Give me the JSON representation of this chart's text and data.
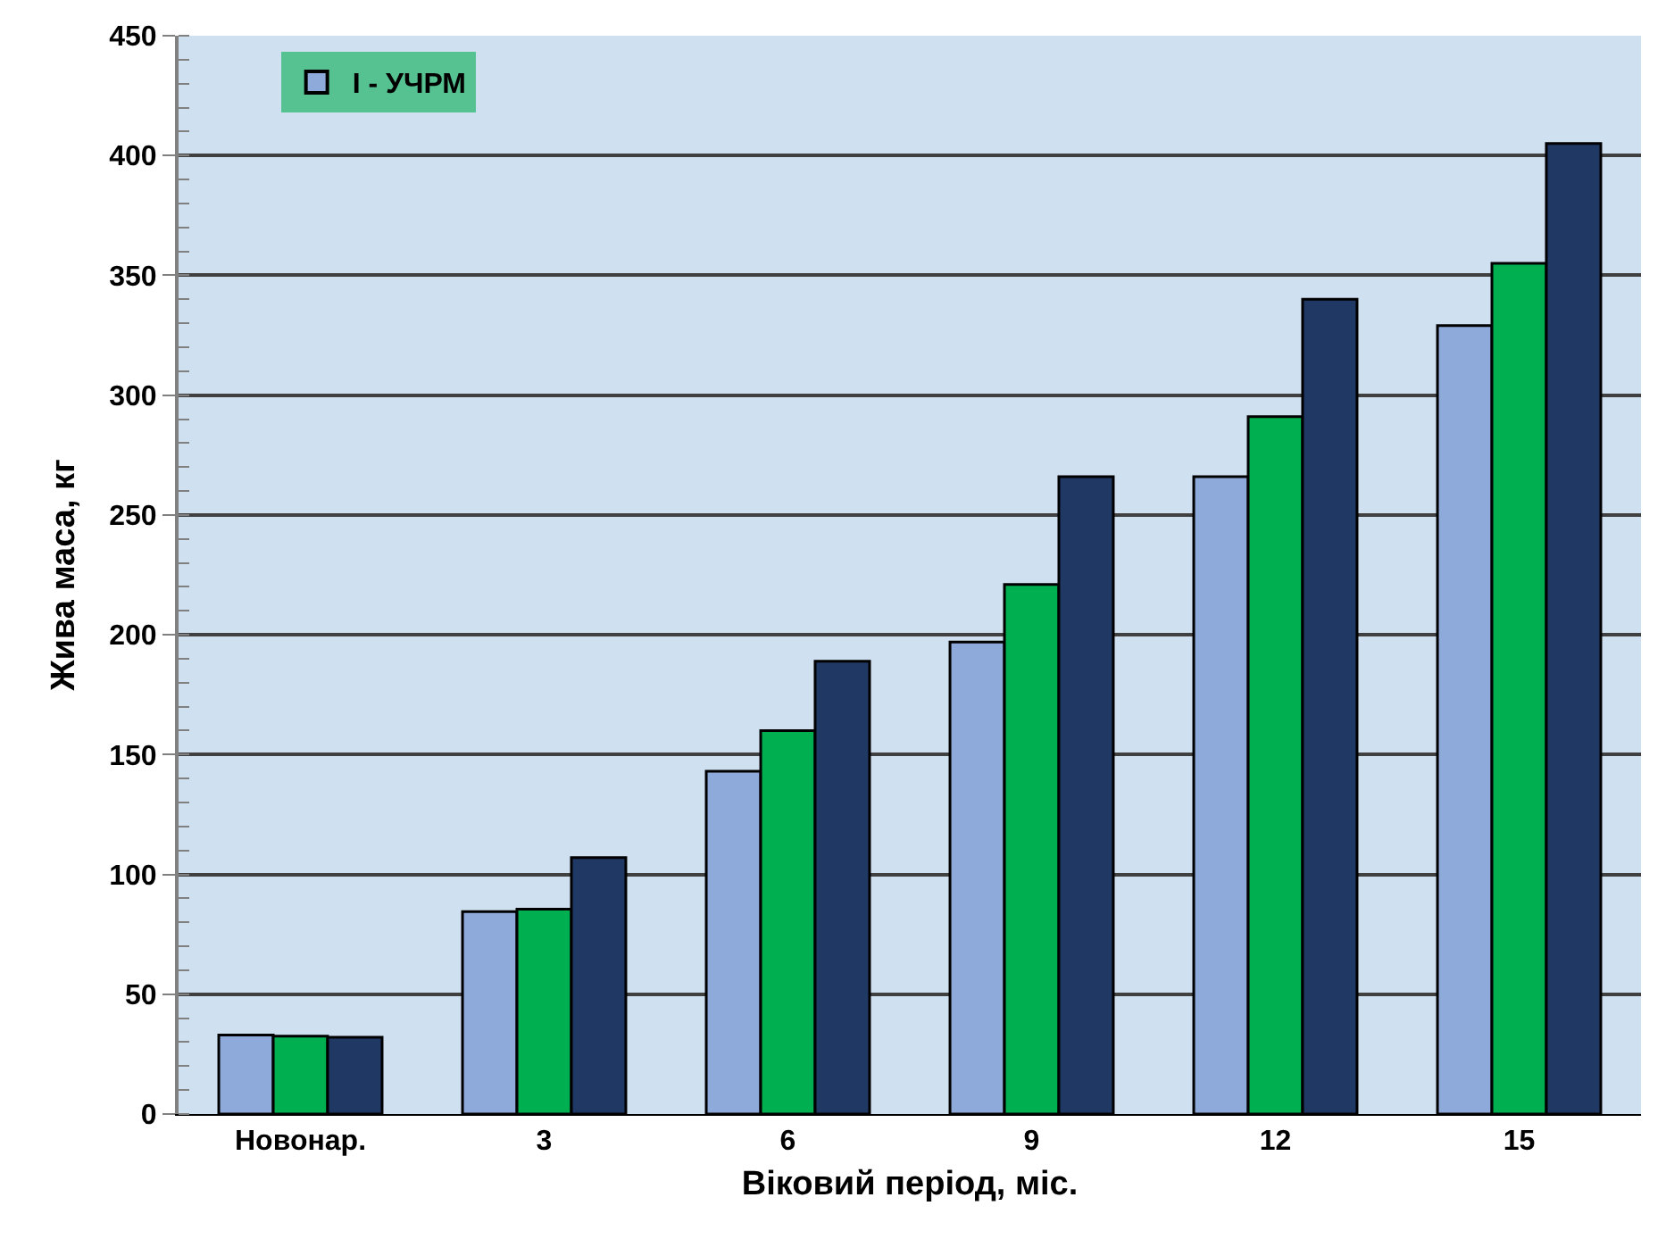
{
  "chart_data": {
    "type": "bar",
    "xlabel": "Віковий період, міс.",
    "ylabel": "Жива маса, кг",
    "categories": [
      "Новонар.",
      "3",
      "6",
      "9",
      "12",
      "15"
    ],
    "series": [
      {
        "name": "І - УЧРМ",
        "color": "#8eaadb",
        "values": [
          33,
          84.5,
          143,
          197,
          266,
          329
        ]
      },
      {
        "color": "#00b050",
        "values": [
          32.5,
          85.5,
          160,
          221,
          291,
          355
        ]
      },
      {
        "color": "#203864",
        "values": [
          32,
          107,
          189,
          266,
          340,
          405
        ]
      }
    ],
    "ylim": [
      0,
      450
    ],
    "yticks": [
      0,
      50,
      100,
      150,
      200,
      250,
      300,
      350,
      400,
      450
    ],
    "grid": "y",
    "legend": "top left"
  }
}
